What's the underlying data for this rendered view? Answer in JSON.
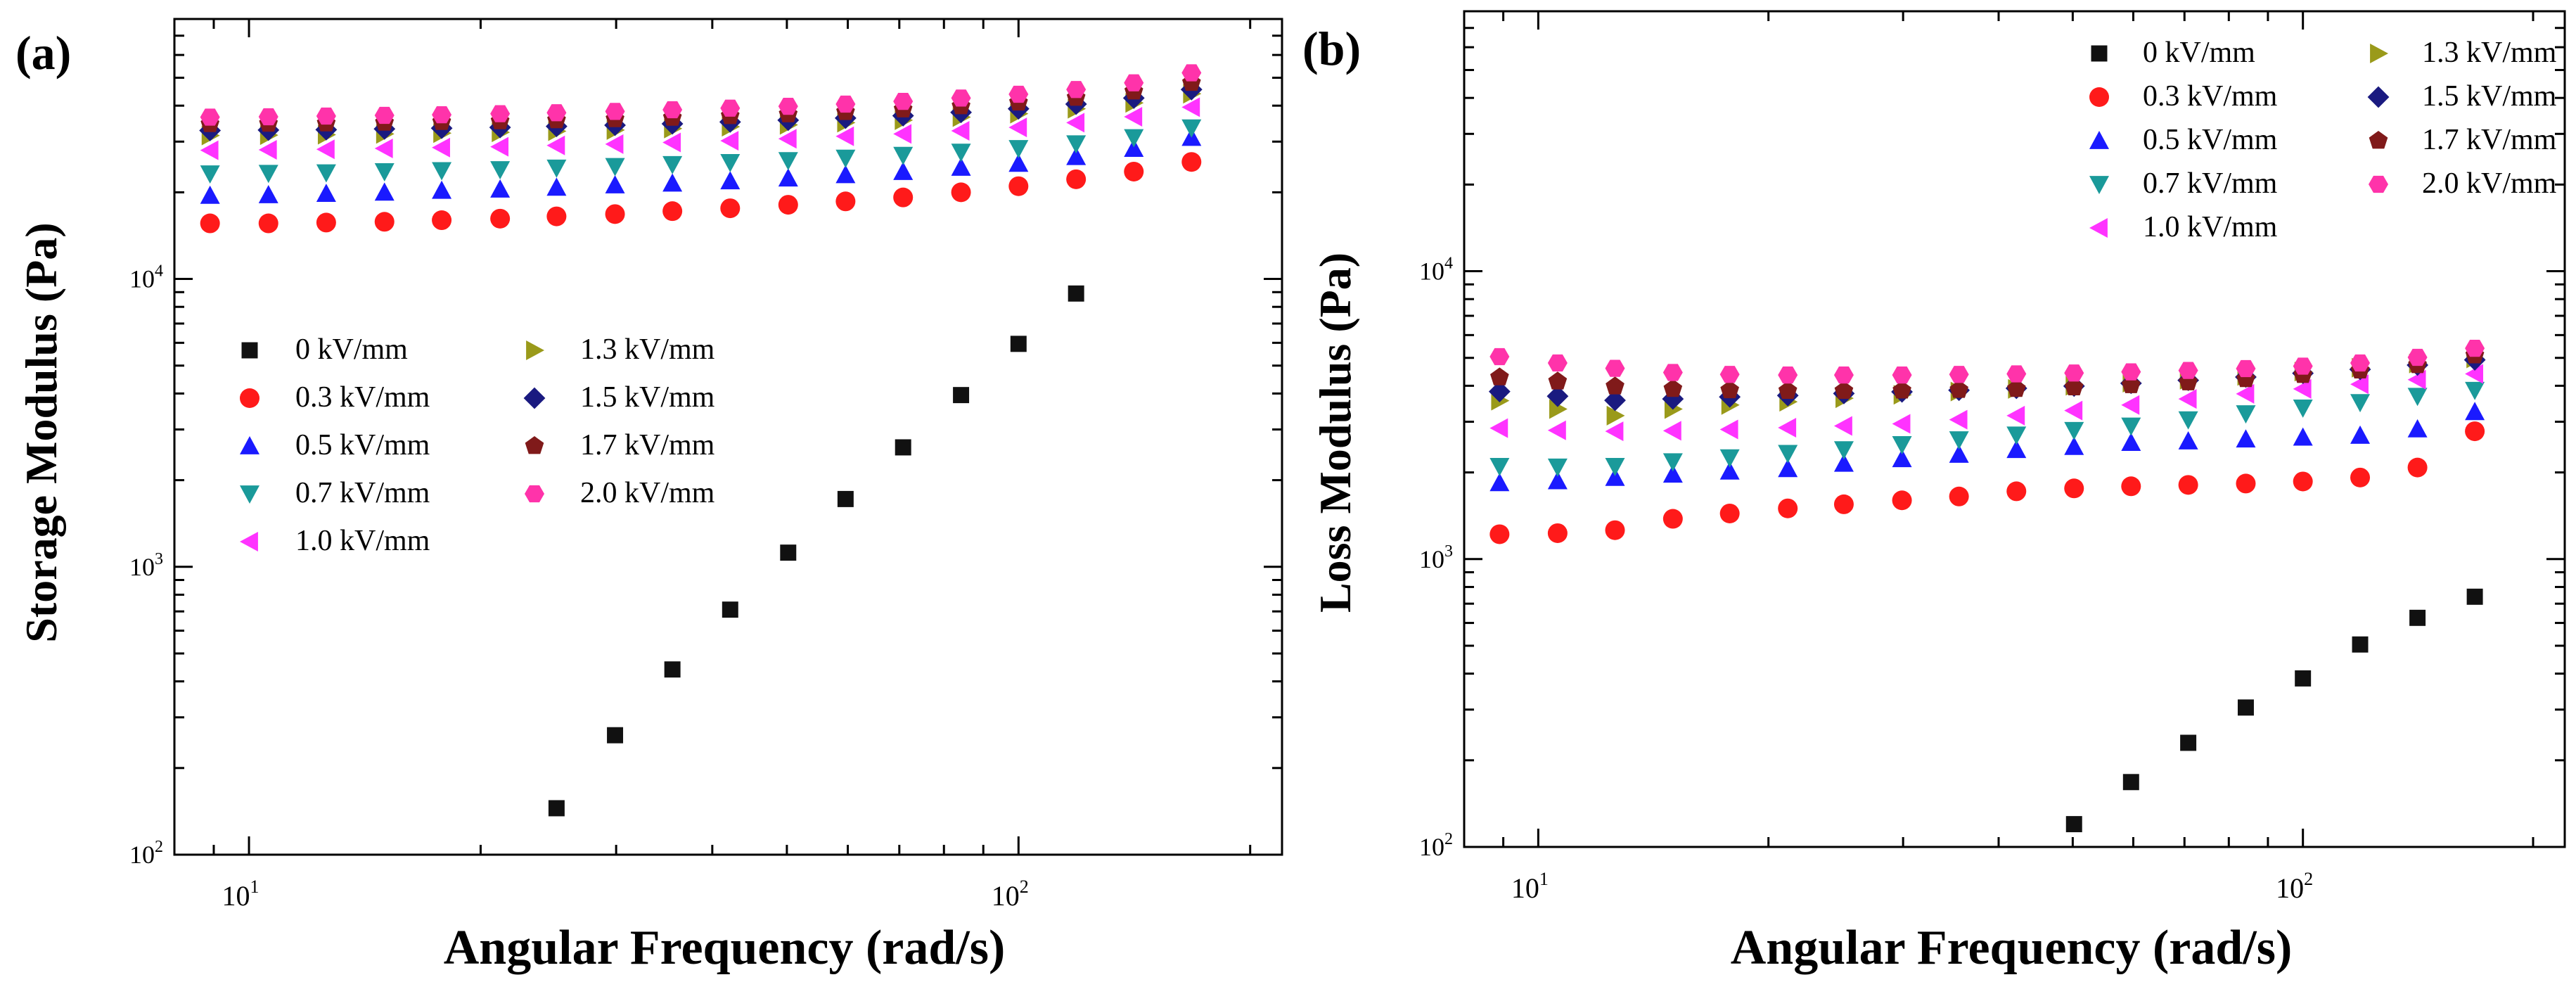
{
  "figure": {
    "panels": [
      {
        "label": "(a)"
      },
      {
        "label": "(b)"
      }
    ]
  },
  "chart_data": [
    {
      "type": "scatter",
      "panel_label": "(a)",
      "ylabel": "Storage Modulus (Pa)",
      "xlabel": "Angular Frequency (rad/s)",
      "xscale": "log",
      "yscale": "log",
      "xlim": [
        8,
        220
      ],
      "ylim": [
        100,
        80000
      ],
      "xticks": [
        {
          "value": 10,
          "base": "10",
          "exp": "1"
        },
        {
          "value": 100,
          "base": "10",
          "exp": "2"
        }
      ],
      "yticks": [
        {
          "value": 100,
          "base": "10",
          "exp": "2"
        },
        {
          "value": 1000,
          "base": "10",
          "exp": "3"
        },
        {
          "value": 10000,
          "base": "10",
          "exp": "4"
        }
      ],
      "legend": {
        "position": "middle-left",
        "columns": 2
      },
      "x": [
        8.9,
        10.6,
        12.6,
        15.0,
        17.8,
        21.2,
        25.1,
        29.9,
        35.5,
        42.2,
        50.2,
        59.6,
        70.8,
        84.2,
        100.0,
        118.8,
        141.2,
        167.8
      ],
      "series": [
        {
          "name": "0 kV/mm",
          "color": "#111111",
          "marker": "square",
          "start_index": 6,
          "values": [
            145,
            260,
            440,
            710,
            1120,
            1720,
            2600,
            3950,
            5950,
            8900
          ]
        },
        {
          "name": "0.3 kV/mm",
          "color": "#ff1a1a",
          "marker": "circle",
          "start_index": 0,
          "values": [
            15600,
            15600,
            15700,
            15800,
            16000,
            16200,
            16500,
            16800,
            17200,
            17600,
            18100,
            18600,
            19200,
            20000,
            21000,
            22200,
            23600,
            25500
          ]
        },
        {
          "name": "0.5 kV/mm",
          "color": "#1a1aff",
          "marker": "triangle-up",
          "start_index": 0,
          "values": [
            19500,
            19600,
            19800,
            20000,
            20300,
            20500,
            20800,
            21200,
            21500,
            21900,
            22400,
            23000,
            23600,
            24400,
            25200,
            26600,
            28400,
            31000
          ]
        },
        {
          "name": "0.7 kV/mm",
          "color": "#1a9a9a",
          "marker": "triangle-down",
          "start_index": 0,
          "values": [
            23200,
            23300,
            23400,
            23600,
            23800,
            24000,
            24300,
            24600,
            25000,
            25400,
            25800,
            26300,
            26900,
            27600,
            28400,
            29500,
            31000,
            33500
          ]
        },
        {
          "name": "1.0 kV/mm",
          "color": "#ff33ff",
          "marker": "triangle-left",
          "start_index": 0,
          "values": [
            28000,
            28100,
            28200,
            28400,
            28600,
            28800,
            29100,
            29400,
            29800,
            30200,
            30700,
            31300,
            31900,
            32700,
            33600,
            34900,
            36600,
            39500
          ]
        },
        {
          "name": "1.3 kV/mm",
          "color": "#9a9a1a",
          "marker": "triangle-right",
          "start_index": 0,
          "values": [
            31500,
            31600,
            31700,
            31900,
            32100,
            32300,
            32600,
            32900,
            33300,
            33800,
            34300,
            34900,
            35600,
            36500,
            37500,
            39000,
            40900,
            44000
          ]
        },
        {
          "name": "1.5 kV/mm",
          "color": "#1a1a80",
          "marker": "diamond",
          "start_index": 0,
          "values": [
            32800,
            32900,
            33000,
            33200,
            33400,
            33600,
            33900,
            34200,
            34600,
            35100,
            35600,
            36200,
            36900,
            37900,
            39000,
            40500,
            42500,
            45500
          ]
        },
        {
          "name": "1.7 kV/mm",
          "color": "#801a1a",
          "marker": "pentagon",
          "start_index": 0,
          "values": [
            34500,
            34600,
            34700,
            34900,
            35100,
            35300,
            35600,
            35900,
            36300,
            36800,
            37300,
            38000,
            38800,
            39800,
            41000,
            42600,
            44800,
            48000
          ]
        },
        {
          "name": "2.0 kV/mm",
          "color": "#ff33aa",
          "marker": "hexagon",
          "start_index": 0,
          "values": [
            36500,
            36600,
            36800,
            37000,
            37200,
            37500,
            37800,
            38200,
            38700,
            39200,
            39800,
            40500,
            41400,
            42500,
            43800,
            45500,
            48000,
            52000
          ]
        }
      ]
    },
    {
      "type": "scatter",
      "panel_label": "(b)",
      "ylabel": "Loss Modulus (Pa)",
      "xlabel": "Angular Frequency (rad/s)",
      "xscale": "log",
      "yscale": "log",
      "xlim": [
        8,
        220
      ],
      "ylim": [
        100,
        80000
      ],
      "xticks": [
        {
          "value": 10,
          "base": "10",
          "exp": "1"
        },
        {
          "value": 100,
          "base": "10",
          "exp": "2"
        }
      ],
      "yticks": [
        {
          "value": 100,
          "base": "10",
          "exp": "2"
        },
        {
          "value": 1000,
          "base": "10",
          "exp": "3"
        },
        {
          "value": 10000,
          "base": "10",
          "exp": "4"
        }
      ],
      "legend": {
        "position": "top-right",
        "columns": 2
      },
      "x": [
        8.9,
        10.6,
        12.6,
        15.0,
        17.8,
        21.2,
        25.1,
        29.9,
        35.5,
        42.2,
        50.2,
        59.6,
        70.8,
        84.2,
        100.0,
        118.8,
        141.2,
        167.8
      ],
      "series": [
        {
          "name": "0 kV/mm",
          "color": "#111111",
          "marker": "square",
          "start_index": 10,
          "values": [
            120,
            168,
            230,
            305,
            385,
            505,
            625,
            740
          ]
        },
        {
          "name": "0.3 kV/mm",
          "color": "#ff1a1a",
          "marker": "circle",
          "start_index": 0,
          "values": [
            1220,
            1230,
            1260,
            1380,
            1440,
            1500,
            1550,
            1600,
            1650,
            1720,
            1760,
            1790,
            1810,
            1830,
            1860,
            1920,
            2080,
            2780
          ]
        },
        {
          "name": "0.5 kV/mm",
          "color": "#1a1aff",
          "marker": "triangle-up",
          "start_index": 0,
          "values": [
            1840,
            1870,
            1920,
            1970,
            2020,
            2060,
            2150,
            2230,
            2310,
            2400,
            2460,
            2540,
            2570,
            2610,
            2650,
            2690,
            2830,
            3250
          ]
        },
        {
          "name": "0.7 kV/mm",
          "color": "#1a9a9a",
          "marker": "triangle-down",
          "start_index": 0,
          "values": [
            2100,
            2090,
            2100,
            2180,
            2250,
            2330,
            2400,
            2500,
            2600,
            2700,
            2800,
            2900,
            3050,
            3200,
            3350,
            3500,
            3680,
            3860
          ]
        },
        {
          "name": "1.0 kV/mm",
          "color": "#ff33ff",
          "marker": "triangle-left",
          "start_index": 0,
          "values": [
            2850,
            2800,
            2780,
            2790,
            2820,
            2860,
            2900,
            2950,
            3050,
            3150,
            3280,
            3430,
            3600,
            3750,
            3900,
            4050,
            4200,
            4400
          ]
        },
        {
          "name": "1.3 kV/mm",
          "color": "#9a9a1a",
          "marker": "triangle-right",
          "start_index": 0,
          "values": [
            3550,
            3320,
            3150,
            3320,
            3430,
            3520,
            3620,
            3720,
            3820,
            3900,
            4000,
            4100,
            4200,
            4330,
            4480,
            4620,
            4780,
            4980
          ]
        },
        {
          "name": "1.5 kV/mm",
          "color": "#1a1a80",
          "marker": "diamond",
          "start_index": 0,
          "values": [
            3820,
            3680,
            3560,
            3600,
            3660,
            3700,
            3760,
            3810,
            3860,
            3920,
            3990,
            4080,
            4180,
            4290,
            4420,
            4560,
            4720,
            4920
          ]
        },
        {
          "name": "1.7 kV/mm",
          "color": "#801a1a",
          "marker": "pentagon",
          "start_index": 0,
          "values": [
            4280,
            4140,
            3980,
            3900,
            3860,
            3840,
            3840,
            3850,
            3870,
            3900,
            3950,
            4020,
            4110,
            4220,
            4360,
            4520,
            4720,
            5100
          ]
        },
        {
          "name": "2.0 kV/mm",
          "color": "#ff33aa",
          "marker": "hexagon",
          "start_index": 0,
          "values": [
            5050,
            4800,
            4600,
            4450,
            4380,
            4360,
            4360,
            4360,
            4380,
            4400,
            4430,
            4470,
            4520,
            4590,
            4680,
            4800,
            5020,
            5400
          ]
        }
      ]
    }
  ]
}
